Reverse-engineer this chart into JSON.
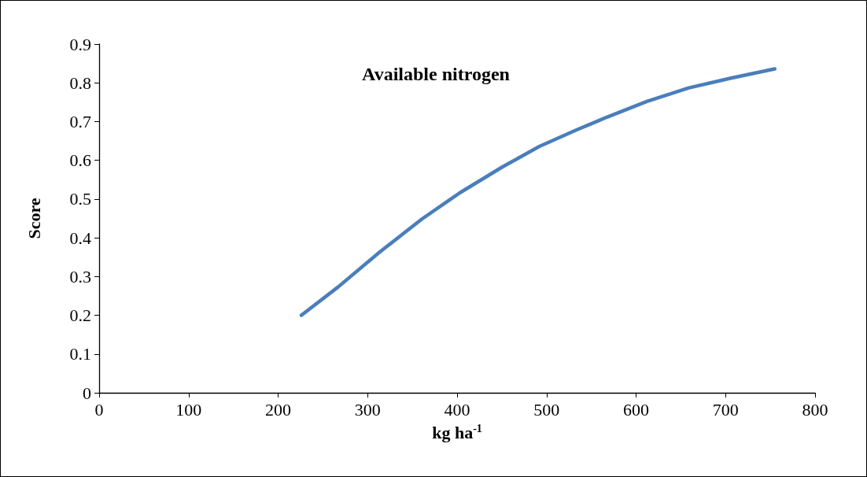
{
  "chart_data": {
    "type": "line",
    "title": "Available nitrogen",
    "xlabel": "kg ha$^{-1}$",
    "ylabel": "Score",
    "x": [
      226,
      267,
      314,
      361,
      403,
      450,
      492,
      534,
      568,
      612,
      659,
      706,
      755
    ],
    "series": [
      {
        "color": "#4a7ebb",
        "values": [
          0.2,
          0.273,
          0.364,
          0.449,
          0.516,
          0.582,
          0.636,
          0.679,
          0.712,
          0.752,
          0.787,
          0.812,
          0.836
        ]
      }
    ],
    "xlim": [
      0,
      800
    ],
    "xticks": [
      0,
      100,
      200,
      300,
      400,
      500,
      600,
      700,
      800
    ],
    "ylim": [
      0,
      0.9
    ],
    "yticks": [
      0,
      0.1,
      0.2,
      0.3,
      0.4,
      0.5,
      0.6,
      0.7,
      0.8,
      0.9
    ],
    "grid": false,
    "marker": "none",
    "line_style": "solid"
  }
}
